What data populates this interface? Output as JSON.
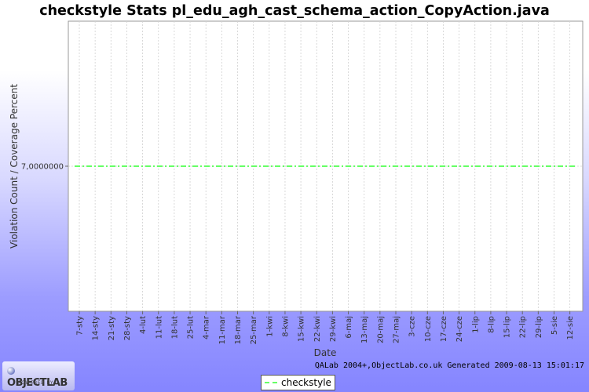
{
  "chart_data": {
    "type": "line",
    "title": "checkstyle  Stats pl_edu_agh_cast_schema_action_CopyAction.java",
    "xlabel": "Date",
    "ylabel": "Violation Count / Coverage Percent",
    "y_tick_labels": [
      "7,0000000"
    ],
    "y_tick_values": [
      7.0
    ],
    "ylim": [
      6.0,
      8.0
    ],
    "categories": [
      "7-sty",
      "14-sty",
      "21-sty",
      "28-sty",
      "4-lut",
      "11-lut",
      "18-lut",
      "25-lut",
      "4-mar",
      "11-mar",
      "18-mar",
      "25-mar",
      "1-kwi",
      "8-kwi",
      "15-kwi",
      "22-kwi",
      "29-kwi",
      "6-maj",
      "13-maj",
      "20-maj",
      "27-maj",
      "3-cze",
      "10-cze",
      "17-cze",
      "24-cze",
      "1-lip",
      "8-lip",
      "15-lip",
      "22-lip",
      "29-lip",
      "5-sie",
      "12-sie"
    ],
    "series": [
      {
        "name": "checkstyle",
        "color": "#66ff66",
        "values": [
          7,
          7,
          7,
          7,
          7,
          7,
          7,
          7,
          7,
          7,
          7,
          7,
          7,
          7,
          7,
          7,
          7,
          7,
          7,
          7,
          7,
          7,
          7,
          7,
          7,
          7,
          7,
          7,
          7,
          7,
          7,
          7
        ]
      }
    ],
    "grid": true,
    "legend_position": "bottom-center"
  },
  "footer": {
    "credit": "QALab 2004+,ObjectLab.co.uk Generated 2009-08-13 15:01:17",
    "logo_name": "OBJECTLAB",
    "logo_tagline": "POWERED BY"
  },
  "colors": {
    "plot_background": "#ffffff",
    "grid": "#d0d0d0",
    "series": "#66ff66"
  }
}
